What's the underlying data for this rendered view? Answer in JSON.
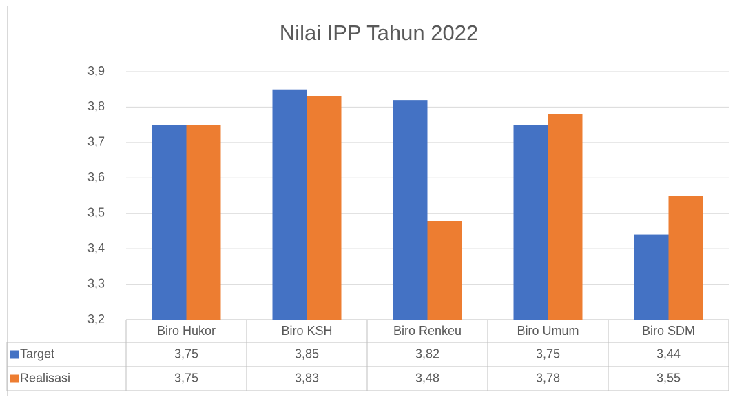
{
  "chart_data": {
    "type": "bar",
    "title": "Nilai IPP Tahun 2022",
    "categories": [
      "Biro Hukor",
      "Biro KSH",
      "Biro Renkeu",
      "Biro Umum",
      "Biro SDM"
    ],
    "series": [
      {
        "name": "Target",
        "color": "#4472c4",
        "values": [
          3.75,
          3.85,
          3.82,
          3.75,
          3.44
        ],
        "value_labels": [
          "3,75",
          "3,85",
          "3,82",
          "3,75",
          "3,44"
        ]
      },
      {
        "name": "Realisasi",
        "color": "#ed7d31",
        "values": [
          3.75,
          3.83,
          3.48,
          3.78,
          3.55
        ],
        "value_labels": [
          "3,75",
          "3,83",
          "3,48",
          "3,78",
          "3,55"
        ]
      }
    ],
    "ylim": [
      3.2,
      3.9
    ],
    "yticks": [
      {
        "value": 3.2,
        "label": "3,2"
      },
      {
        "value": 3.3,
        "label": "3,3"
      },
      {
        "value": 3.4,
        "label": "3,4"
      },
      {
        "value": 3.5,
        "label": "3,5"
      },
      {
        "value": 3.6,
        "label": "3,6"
      },
      {
        "value": 3.7,
        "label": "3,7"
      },
      {
        "value": 3.8,
        "label": "3,8"
      },
      {
        "value": 3.9,
        "label": "3,9"
      }
    ],
    "grid": true
  }
}
